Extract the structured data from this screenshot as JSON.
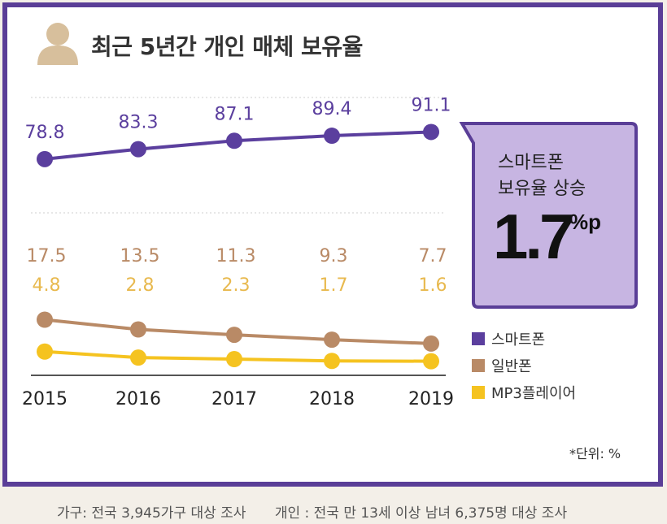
{
  "title": "최근 5년간 개인 매체 보유율",
  "colors": {
    "smartphone": "#5b3f9e",
    "feature_phone": "#b98a66",
    "mp3": "#f5c320",
    "frame": "#5a3e97",
    "callout_fill": "#c7b5e2",
    "callout_stroke": "#5a3e97",
    "smartphone_label": "#5b3f9e",
    "feature_phone_label": "#b98a66",
    "mp3_label": "#e8b94e"
  },
  "callout": {
    "line1": "스마트폰",
    "line2": "보유율 상승",
    "value": "1.7",
    "unit": "%p"
  },
  "legend": [
    {
      "label": "스마트폰",
      "color_key": "smartphone"
    },
    {
      "label": "일반폰",
      "color_key": "feature_phone"
    },
    {
      "label": "MP3플레이어",
      "color_key": "mp3"
    }
  ],
  "unit_note": "*단위: %",
  "footer": {
    "household": "가구: 전국 3,945가구 대상 조사",
    "individual": "개인 : 전국 만 13세 이상 남녀 6,375명 대상 조사"
  },
  "chart_data": {
    "type": "line",
    "title": "최근 5년간 개인 매체 보유율",
    "categories": [
      "2015",
      "2016",
      "2017",
      "2018",
      "2019"
    ],
    "series": [
      {
        "name": "스마트폰",
        "values": [
          78.8,
          83.3,
          87.1,
          89.4,
          91.1
        ],
        "labels": [
          "78.8",
          "83.3",
          "87.1",
          "89.4",
          "91.1"
        ]
      },
      {
        "name": "일반폰",
        "values": [
          17.5,
          13.5,
          11.3,
          9.3,
          7.7
        ],
        "labels": [
          "17.5",
          "13.5",
          "11.3",
          "9.3",
          "7.7"
        ]
      },
      {
        "name": "MP3플레이어",
        "values": [
          4.8,
          2.8,
          2.3,
          1.7,
          1.6
        ],
        "labels": [
          "4.8",
          "2.8",
          "2.3",
          "1.7",
          "1.6"
        ]
      }
    ],
    "xlabel": "",
    "ylabel": "",
    "unit": "%",
    "legend_position": "right"
  }
}
